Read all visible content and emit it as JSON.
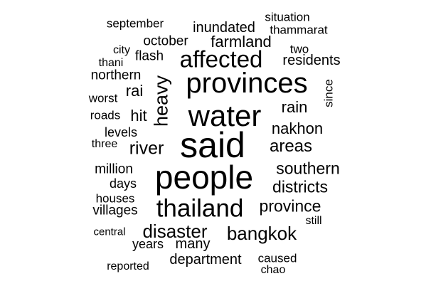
{
  "cloud": {
    "text_color": "#000000",
    "background": "#ffffff",
    "words": [
      "said",
      "people",
      "water",
      "provinces",
      "thailand",
      "affected",
      "bangkok",
      "disaster",
      "heavy",
      "river",
      "areas",
      "southern",
      "districts",
      "province",
      "nakhon",
      "rain",
      "farmland",
      "inundated",
      "million",
      "villages",
      "department",
      "many",
      "hit",
      "rai",
      "flash",
      "october",
      "residents",
      "northern",
      "levels",
      "days",
      "houses",
      "years",
      "caused",
      "thammarat",
      "situation",
      "september",
      "two",
      "since",
      "worst",
      "roads",
      "three",
      "city",
      "thani",
      "central",
      "still",
      "reported",
      "chao"
    ]
  }
}
